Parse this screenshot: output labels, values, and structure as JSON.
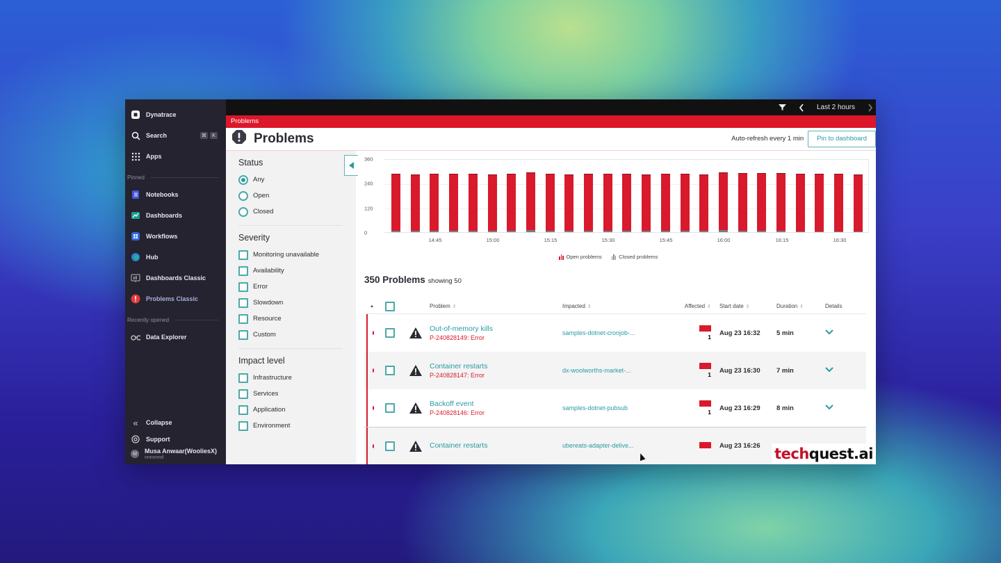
{
  "sidebar": {
    "brand": "Dynatrace",
    "search": {
      "label": "Search",
      "shortcut": [
        "⌘",
        "K"
      ]
    },
    "apps": "Apps",
    "pinned_label": "Pinned",
    "pinned": [
      {
        "label": "Notebooks",
        "icon": "notebooks-icon"
      },
      {
        "label": "Dashboards",
        "icon": "dashboards-icon"
      },
      {
        "label": "Workflows",
        "icon": "workflows-icon"
      },
      {
        "label": "Hub",
        "icon": "hub-icon"
      },
      {
        "label": "Dashboards Classic",
        "icon": "dashboards-classic-icon"
      },
      {
        "label": "Problems Classic",
        "icon": "problems-classic-icon"
      }
    ],
    "recent_label": "Recently opened",
    "recent": [
      {
        "label": "Data Explorer",
        "icon": "binoculars-icon"
      }
    ],
    "collapse": "Collapse",
    "support": "Support",
    "user": {
      "initial": "M",
      "name": "Musa Anwaar(WooliesX)",
      "sub": "nnnnnnd"
    }
  },
  "topbar": {
    "timeframe": "Last 2 hours"
  },
  "breadcrumb": "Problems",
  "header": {
    "title": "Problems",
    "auto_refresh": "Auto-refresh every 1 min",
    "pin_button": "Pin to dashboard"
  },
  "filters": {
    "status": {
      "title": "Status",
      "options": [
        "Any",
        "Open",
        "Closed"
      ],
      "selected": "Any"
    },
    "severity": {
      "title": "Severity",
      "options": [
        "Monitoring unavailable",
        "Availability",
        "Error",
        "Slowdown",
        "Resource",
        "Custom"
      ]
    },
    "impact": {
      "title": "Impact level",
      "options": [
        "Infrastructure",
        "Services",
        "Application",
        "Environment"
      ]
    }
  },
  "colors": {
    "accent": "#2a9aa2",
    "error": "#d81a2c",
    "topbar": "#111111",
    "sidebar": "#24232f"
  },
  "chart_data": {
    "type": "bar",
    "stacked": true,
    "title": "",
    "xlabel": "",
    "ylabel": "",
    "ylim": [
      0,
      360
    ],
    "yticks": [
      0,
      120,
      240,
      360
    ],
    "xtick_labels": [
      "14:45",
      "15:00",
      "15:15",
      "15:30",
      "15:45",
      "16:00",
      "16:15",
      "16:30"
    ],
    "grid": true,
    "legend_position": "bottom",
    "categories": [
      "14:40",
      "14:45",
      "14:50",
      "14:55",
      "15:00",
      "15:05",
      "15:10",
      "15:15",
      "15:20",
      "15:25",
      "15:30",
      "15:35",
      "15:40",
      "15:45",
      "15:50",
      "15:55",
      "16:00",
      "16:05",
      "16:10",
      "16:15",
      "16:20",
      "16:25",
      "16:30",
      "16:35",
      "16:40"
    ],
    "series": [
      {
        "name": "Open problems",
        "color": "#d81a2c",
        "values": [
          277,
          275,
          277,
          277,
          277,
          274,
          277,
          282,
          279,
          274,
          279,
          277,
          278,
          277,
          277,
          277,
          276,
          281,
          281,
          281,
          282,
          282,
          282,
          280,
          278
        ]
      },
      {
        "name": "Closed problems",
        "color": "#7c7c84",
        "values": [
          8,
          7,
          7,
          8,
          7,
          7,
          8,
          10,
          8,
          7,
          8,
          7,
          7,
          6,
          8,
          7,
          7,
          10,
          8,
          7,
          7,
          4,
          3,
          4,
          2
        ]
      }
    ]
  },
  "problems": {
    "count_label": "350 Problems",
    "showing_label": "showing 50",
    "columns": [
      "Problem",
      "Impacted",
      "Affected",
      "Start date",
      "Duration",
      "Details"
    ],
    "rows": [
      {
        "title": "Out-of-memory kills",
        "id": "P-240828149: Error",
        "impacted": "samples-dotnet-cronjob-...",
        "affected": "1",
        "start": "Aug 23 16:32",
        "duration": "5 min"
      },
      {
        "title": "Container restarts",
        "id": "P-240828147: Error",
        "impacted": "dx-woolworths-market-...",
        "affected": "1",
        "start": "Aug 23 16:30",
        "duration": "7 min"
      },
      {
        "title": "Backoff event",
        "id": "P-240828146: Error",
        "impacted": "samples-dotnet-pubsub",
        "affected": "1",
        "start": "Aug 23 16:29",
        "duration": "8 min"
      },
      {
        "title": "Container restarts",
        "id": "",
        "impacted": "ubereats-adapter-delive...",
        "affected": "",
        "start": "Aug 23 16:26",
        "duration": ""
      }
    ]
  },
  "watermark": {
    "part1": "tech",
    "part2": "quest.ai"
  }
}
